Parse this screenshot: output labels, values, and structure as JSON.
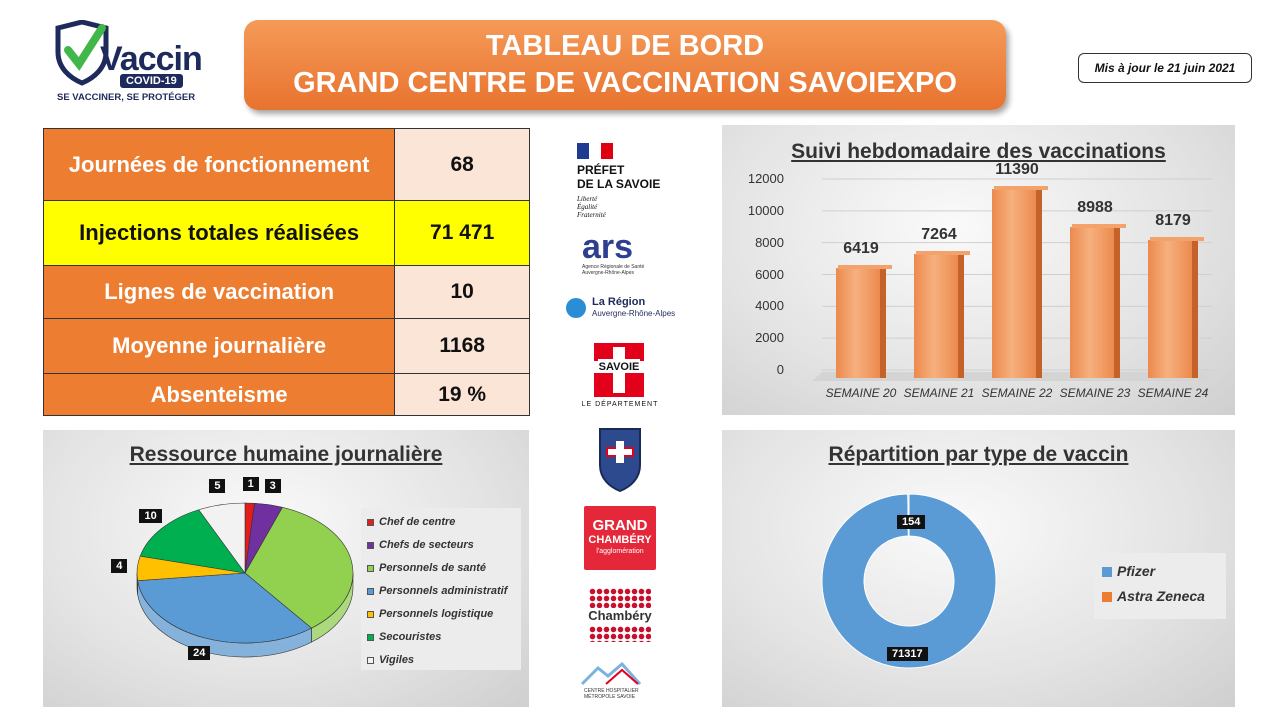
{
  "logo": {
    "word": "Vaccin",
    "pill": "COVID-19",
    "tagline": "SE VACCINER, SE PROTÉGER"
  },
  "title": {
    "line1": "TABLEAU DE BORD",
    "line2": "GRAND CENTRE DE VACCINATION SAVOIEXPO"
  },
  "update": "Mis à jour le 21 juin 2021",
  "kpis": [
    {
      "label": "Journées de fonctionnement",
      "value": "68"
    },
    {
      "label": "Injections totales réalisées",
      "value": "71 471"
    },
    {
      "label": "Lignes de vaccination",
      "value": "10"
    },
    {
      "label": "Moyenne journalière",
      "value": "1168"
    },
    {
      "label": "Absenteisme",
      "value": "19 %"
    }
  ],
  "partners": {
    "prefet_line1": "PRÉFET",
    "prefet_line2": "DE LA SAVOIE",
    "prefet_motto": [
      "Liberté",
      "Égalité",
      "Fraternité"
    ],
    "ars": "ars",
    "ars_sub": "Agence Régionale de Santé Auvergne-Rhône-Alpes",
    "region": "La Région",
    "region_sub": "Auvergne-Rhône-Alpes",
    "savoie": "SAVOIE",
    "savoie_sub": "LE DÉPARTEMENT",
    "grand_line1": "GRAND",
    "grand_line2": "CHAMBÉRY",
    "grand_line3": "l'agglomération",
    "chambery": "Chambéry",
    "hospital": "CENTRE HOSPITALIER MÉTROPOLE SAVOIE"
  },
  "chart_data": [
    {
      "type": "bar",
      "title": "Suivi hebdomadaire des vaccinations",
      "categories": [
        "SEMAINE 20",
        "SEMAINE 21",
        "SEMAINE 22",
        "SEMAINE 23",
        "SEMAINE 24"
      ],
      "values": [
        6419,
        7264,
        11390,
        8988,
        8179
      ],
      "yticks": [
        "12000",
        "10000",
        "8000",
        "6000",
        "4000",
        "2000",
        "0"
      ],
      "ylim": [
        0,
        12000
      ],
      "color": "#ed7d31"
    },
    {
      "type": "pie",
      "title": "Ressource humaine journalière",
      "slices": [
        {
          "name": "Chef de centre",
          "value": 1,
          "label": "1",
          "color": "#e31c1c"
        },
        {
          "name": "Chefs de secteurs",
          "value": 3,
          "label": "3",
          "color": "#7030a0"
        },
        {
          "name": "Personnels de santé",
          "value": 24,
          "label": "24",
          "color": "#92d050"
        },
        {
          "name": "Personnels administratif",
          "value": 24,
          "label": "24",
          "color": "#5b9bd5"
        },
        {
          "name": "Personnels logistique",
          "value": 4,
          "label": "4",
          "color": "#ffc000"
        },
        {
          "name": "Secouristes",
          "value": 10,
          "label": "10",
          "color": "#00b050"
        },
        {
          "name": "Vigiles",
          "value": 5,
          "label": "5",
          "color": "#f2f2f2"
        }
      ],
      "legend": "right"
    },
    {
      "type": "pie",
      "title": "Répartition par type de vaccin",
      "slices": [
        {
          "name": "Pfizer",
          "value": 71317,
          "label": "71317",
          "color": "#5b9bd5"
        },
        {
          "name": "Astra Zeneca",
          "value": 154,
          "label": "154",
          "color": "#ed7d31"
        }
      ],
      "legend": "right"
    }
  ]
}
